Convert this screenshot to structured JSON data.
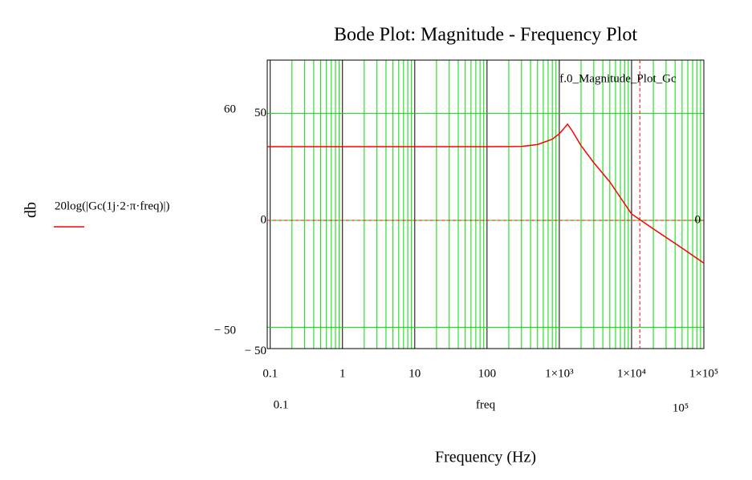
{
  "chart_data": {
    "type": "line",
    "title": "Bode Plot: Magnitude - Frequency Plot",
    "x_label": "Frequency (Hz)",
    "y_label": "db",
    "x_variable": "freq",
    "x_limit_labels": [
      "0.1",
      "10⁵"
    ],
    "y_limit_labels": [
      "60",
      "− 50"
    ],
    "log_x": true,
    "xlim": [
      0.091,
      100000
    ],
    "ylim": [
      -60,
      75
    ],
    "xticks": [
      {
        "value": 0.1,
        "label": "0.1"
      },
      1,
      10,
      100,
      {
        "value": 1000,
        "label": "1×10³"
      },
      {
        "value": 10000,
        "label": "1×10⁴"
      },
      {
        "value": 100000,
        "label": "1×10⁵"
      }
    ],
    "yticks": [
      {
        "value": -50,
        "label": "− 50"
      },
      0,
      50
    ],
    "grid_color": "#00dd00",
    "x": [
      0.091,
      1,
      10,
      100,
      300,
      500,
      800,
      1000,
      1300,
      1500,
      2000,
      3000,
      5000,
      10000,
      20000,
      50000,
      100000
    ],
    "series": [
      {
        "name": "20log(|Gc(1j·2·π·freq)|)",
        "color": "#ff0000",
        "values": [
          34.5,
          34.5,
          34.5,
          34.5,
          34.6,
          35.5,
          38,
          40.5,
          45,
          42,
          35,
          27,
          18,
          3,
          -4,
          -13,
          -20
        ]
      }
    ],
    "vmarker": {
      "x": 13000,
      "label": "f.0_Magnitude_Plot_Gc"
    },
    "hmarker": {
      "y": 0,
      "label": "0"
    }
  }
}
